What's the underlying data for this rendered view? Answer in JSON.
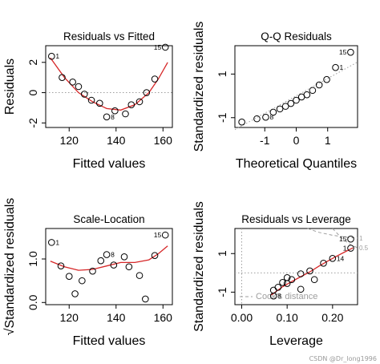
{
  "watermark": "CSDN @Dr_long1996",
  "styles": {
    "point_color": "#000000",
    "smooth_color": "#d62728",
    "ref_line_color": "#9e9e9e",
    "cook_color": "#9e9e9e"
  },
  "chart_data": [
    {
      "type": "scatter",
      "title": "Residuals vs Fitted",
      "xlabel": "Fitted values",
      "ylabel": "Residuals",
      "xlim": [
        110,
        164
      ],
      "ylim": [
        -2.3,
        3.1
      ],
      "xticks": [
        120,
        140,
        160
      ],
      "xtick_labels": [
        "120",
        "140",
        "160"
      ],
      "yticks": [
        -2,
        0,
        2
      ],
      "ytick_labels": [
        "-2",
        "0",
        "2"
      ],
      "reference_line": {
        "orientation": "horizontal",
        "y": 0,
        "style": "dotted"
      },
      "points": [
        {
          "x": 112.5,
          "y": 2.4,
          "label": "1"
        },
        {
          "x": 117.0,
          "y": 1.0
        },
        {
          "x": 121.5,
          "y": 0.7
        },
        {
          "x": 124.0,
          "y": 0.4
        },
        {
          "x": 126.5,
          "y": -0.1
        },
        {
          "x": 129.5,
          "y": -0.5
        },
        {
          "x": 133.0,
          "y": -0.7
        },
        {
          "x": 136.0,
          "y": -1.6,
          "label": "8"
        },
        {
          "x": 139.5,
          "y": -1.2
        },
        {
          "x": 144.0,
          "y": -1.4
        },
        {
          "x": 146.5,
          "y": -0.8
        },
        {
          "x": 150.0,
          "y": -0.6
        },
        {
          "x": 153.0,
          "y": 0.0
        },
        {
          "x": 156.5,
          "y": 0.9
        },
        {
          "x": 161.0,
          "y": 3.0,
          "label": "15"
        }
      ],
      "smooth": [
        [
          112,
          2.3
        ],
        [
          118,
          1.0
        ],
        [
          124,
          0.0
        ],
        [
          130,
          -0.6
        ],
        [
          136,
          -1.05
        ],
        [
          142,
          -1.15
        ],
        [
          148,
          -0.8
        ],
        [
          154,
          0.0
        ],
        [
          158,
          0.9
        ],
        [
          162,
          2.0
        ]
      ]
    },
    {
      "type": "scatter",
      "title": "Q-Q Residuals",
      "xlabel": "Theoretical Quantiles",
      "ylabel": "Standardized residuals",
      "xlim": [
        -1.95,
        1.95
      ],
      "ylim": [
        -1.45,
        2.3
      ],
      "xticks": [
        -1,
        0,
        1
      ],
      "xtick_labels": [
        "-1",
        "0",
        "1"
      ],
      "yticks": [
        -1,
        1
      ],
      "ytick_labels": [
        "-1",
        "1"
      ],
      "reference_line": {
        "orientation": "diagonal",
        "points": [
          [
            -1.95,
            -1.55
          ],
          [
            1.95,
            1.55
          ]
        ],
        "style": "dotted"
      },
      "points": [
        {
          "x": -1.73,
          "y": -1.2
        },
        {
          "x": -1.25,
          "y": -1.05
        },
        {
          "x": -0.97,
          "y": -0.98,
          "label": "8"
        },
        {
          "x": -0.73,
          "y": -0.75
        },
        {
          "x": -0.52,
          "y": -0.6
        },
        {
          "x": -0.34,
          "y": -0.48
        },
        {
          "x": -0.17,
          "y": -0.35
        },
        {
          "x": 0.0,
          "y": -0.2
        },
        {
          "x": 0.17,
          "y": -0.05
        },
        {
          "x": 0.34,
          "y": 0.05
        },
        {
          "x": 0.52,
          "y": 0.25
        },
        {
          "x": 0.73,
          "y": 0.5
        },
        {
          "x": 0.97,
          "y": 0.75
        },
        {
          "x": 1.25,
          "y": 1.3,
          "label": "1"
        },
        {
          "x": 1.73,
          "y": 2.0,
          "label": "15"
        }
      ]
    },
    {
      "type": "scatter",
      "title": "Scale-Location",
      "xlabel": "Fitted values",
      "ylabel": "√Standardized residuals",
      "xlim": [
        110,
        164
      ],
      "ylim": [
        -0.05,
        1.7
      ],
      "xticks": [
        120,
        140,
        160
      ],
      "xtick_labels": [
        "120",
        "140",
        "160"
      ],
      "yticks": [
        0.0,
        1.0
      ],
      "ytick_labels": [
        "0.0",
        "1.0"
      ],
      "points": [
        {
          "x": 112.5,
          "y": 1.38,
          "label": "1"
        },
        {
          "x": 116.5,
          "y": 0.84
        },
        {
          "x": 120.0,
          "y": 0.6
        },
        {
          "x": 122.5,
          "y": 0.2
        },
        {
          "x": 125.5,
          "y": 0.5
        },
        {
          "x": 130.0,
          "y": 0.72
        },
        {
          "x": 133.5,
          "y": 0.96
        },
        {
          "x": 136.0,
          "y": 1.1,
          "label": "8"
        },
        {
          "x": 139.0,
          "y": 0.86
        },
        {
          "x": 143.5,
          "y": 1.05
        },
        {
          "x": 145.5,
          "y": 0.82
        },
        {
          "x": 150.0,
          "y": 0.62
        },
        {
          "x": 152.5,
          "y": 0.08
        },
        {
          "x": 156.5,
          "y": 1.08
        },
        {
          "x": 161.0,
          "y": 1.55,
          "label": "15"
        }
      ],
      "smooth": [
        [
          112,
          0.95
        ],
        [
          118,
          0.82
        ],
        [
          124,
          0.74
        ],
        [
          130,
          0.76
        ],
        [
          136,
          0.84
        ],
        [
          142,
          0.92
        ],
        [
          148,
          0.92
        ],
        [
          154,
          0.98
        ],
        [
          158,
          1.12
        ],
        [
          162,
          1.3
        ]
      ]
    },
    {
      "type": "scatter",
      "title": "Residuals vs Leverage",
      "xlabel": "Leverage",
      "ylabel": "Standardized residuals",
      "xlim": [
        -0.015,
        0.255
      ],
      "ylim": [
        -1.65,
        2.3
      ],
      "xticks": [
        0.0,
        0.1,
        0.2
      ],
      "xtick_labels": [
        "0.00",
        "0.10",
        "0.20"
      ],
      "yticks": [
        -1,
        1
      ],
      "ytick_labels": [
        "-1",
        "1"
      ],
      "reference_lines": [
        {
          "orientation": "horizontal",
          "y": 0,
          "style": "dotted"
        },
        {
          "orientation": "vertical",
          "x": 0,
          "style": "dotted"
        }
      ],
      "points": [
        {
          "x": 0.07,
          "y": -1.2,
          "label": "8"
        },
        {
          "x": 0.07,
          "y": -0.9
        },
        {
          "x": 0.08,
          "y": -0.75
        },
        {
          "x": 0.09,
          "y": -0.5
        },
        {
          "x": 0.1,
          "y": -0.25
        },
        {
          "x": 0.1,
          "y": -0.55
        },
        {
          "x": 0.11,
          "y": -0.35
        },
        {
          "x": 0.13,
          "y": -0.85
        },
        {
          "x": 0.13,
          "y": -0.05
        },
        {
          "x": 0.15,
          "y": 0.1
        },
        {
          "x": 0.16,
          "y": -0.35
        },
        {
          "x": 0.18,
          "y": 0.5
        },
        {
          "x": 0.2,
          "y": 0.75,
          "label": "14"
        },
        {
          "x": 0.24,
          "y": 1.28,
          "label": "1"
        },
        {
          "x": 0.24,
          "y": 1.75,
          "label": "15"
        }
      ],
      "smooth": [
        [
          0.065,
          -1.15
        ],
        [
          0.09,
          -0.72
        ],
        [
          0.11,
          -0.45
        ],
        [
          0.13,
          -0.2
        ],
        [
          0.15,
          0.05
        ],
        [
          0.17,
          0.35
        ],
        [
          0.19,
          0.62
        ],
        [
          0.21,
          0.88
        ],
        [
          0.23,
          1.12
        ],
        [
          0.245,
          1.3
        ]
      ],
      "cooks_distance": {
        "legend": "Cook's distance",
        "contours": [
          {
            "label": "1",
            "points": [
              [
                0.145,
                2.3
              ],
              [
                0.17,
                2.1
              ],
              [
                0.2,
                1.95
              ],
              [
                0.23,
                1.85
              ],
              [
                0.255,
                1.8
              ]
            ]
          },
          {
            "label": "0.5",
            "points": [
              [
                0.2,
                2.3
              ],
              [
                0.22,
                1.8
              ],
              [
                0.24,
                1.45
              ],
              [
                0.255,
                1.3
              ]
            ]
          }
        ]
      }
    }
  ]
}
